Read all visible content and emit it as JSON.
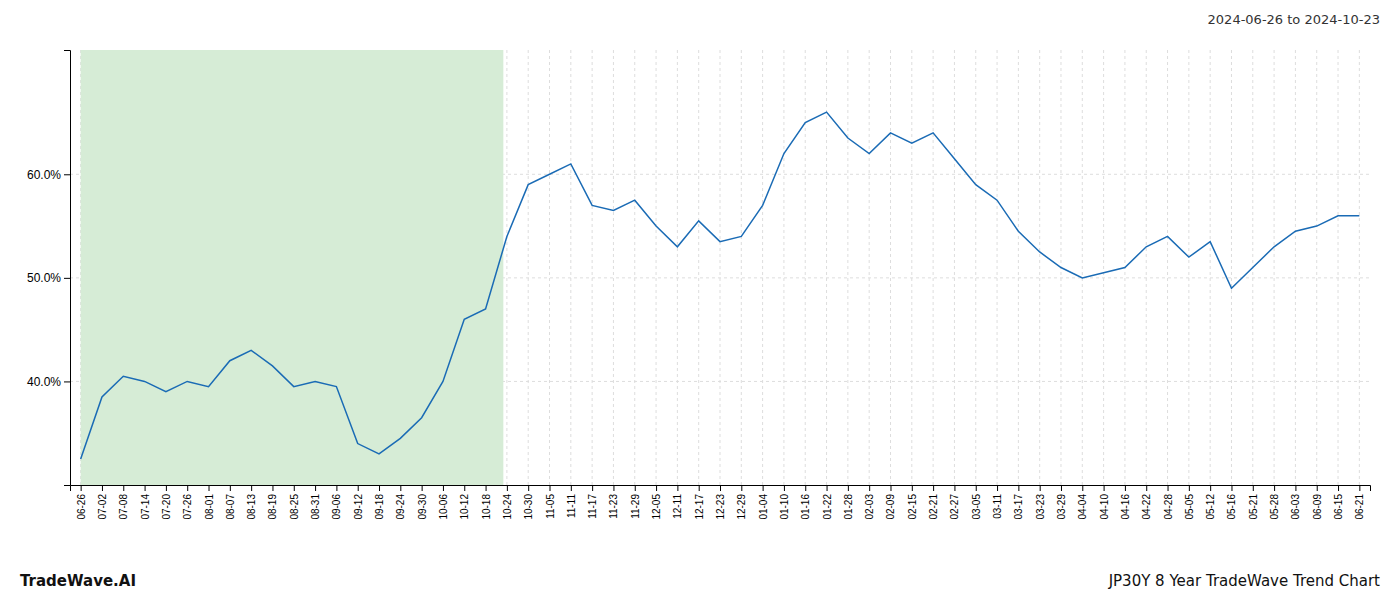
{
  "chart_data": {
    "type": "line",
    "title": "JP30Y 8 Year TradeWave Trend Chart",
    "annotations": [
      "2024-06-26 to 2024-10-23",
      "TradeWave.AI"
    ],
    "categories": [
      "06-26",
      "07-02",
      "07-08",
      "07-14",
      "07-20",
      "07-26",
      "08-01",
      "08-07",
      "08-13",
      "08-19",
      "08-25",
      "08-31",
      "09-06",
      "09-12",
      "09-18",
      "09-24",
      "09-30",
      "10-06",
      "10-12",
      "10-18",
      "10-24",
      "10-30",
      "11-05",
      "11-11",
      "11-17",
      "11-23",
      "11-29",
      "12-05",
      "12-11",
      "12-17",
      "12-23",
      "12-29",
      "01-04",
      "01-10",
      "01-16",
      "01-22",
      "01-28",
      "02-03",
      "02-09",
      "02-15",
      "02-21",
      "02-27",
      "03-05",
      "03-11",
      "03-17",
      "03-23",
      "03-29",
      "04-04",
      "04-10",
      "04-16",
      "04-22",
      "04-28",
      "05-05",
      "05-12",
      "05-16",
      "05-21",
      "05-28",
      "06-03",
      "06-09",
      "06-15",
      "06-21"
    ],
    "values": [
      0.325,
      0.385,
      0.405,
      0.4,
      0.39,
      0.4,
      0.395,
      0.42,
      0.43,
      0.415,
      0.395,
      0.4,
      0.395,
      0.34,
      0.33,
      0.345,
      0.365,
      0.4,
      0.46,
      0.47,
      0.54,
      0.59,
      0.6,
      0.61,
      0.57,
      0.565,
      0.575,
      0.55,
      0.53,
      0.555,
      0.535,
      0.54,
      0.57,
      0.62,
      0.65,
      0.66,
      0.635,
      0.62,
      0.64,
      0.63,
      0.64,
      0.615,
      0.59,
      0.575,
      0.545,
      0.525,
      0.51,
      0.5,
      0.505,
      0.51,
      0.53,
      0.54,
      0.52,
      0.535,
      0.49,
      0.51,
      0.53,
      0.545,
      0.55,
      0.56,
      0.56
    ],
    "color": "#1a6bb5",
    "shaded_region": {
      "start": "2024-06-26",
      "end": "2024-10-23",
      "color": "#d6ecd6"
    },
    "ylim": [
      0.3,
      0.72
    ],
    "yticks": [
      {
        "value": 0.4,
        "label": "40.0%"
      },
      {
        "value": 0.5,
        "label": "50.0%"
      },
      {
        "value": 0.6,
        "label": "60.0%"
      }
    ],
    "grid": true
  }
}
